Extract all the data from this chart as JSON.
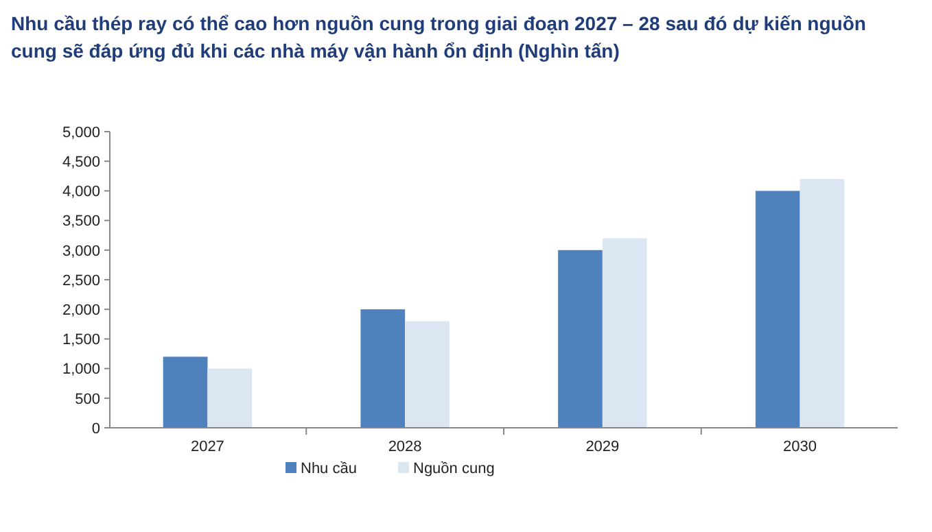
{
  "chart_data": {
    "type": "bar",
    "title": "Nhu cầu thép ray có thể cao hơn nguồn cung trong giai đoạn 2027 – 28 sau đó dự kiến nguồn cung sẽ đáp ứng đủ khi các nhà máy vận hành ổn định (Nghìn tấn)",
    "categories": [
      "2027",
      "2028",
      "2029",
      "2030"
    ],
    "series": [
      {
        "name": "Nhu cầu",
        "color": "#4f81bd",
        "values": [
          1200,
          2000,
          3000,
          4000
        ]
      },
      {
        "name": "Nguồn cung",
        "color": "#dce6f2",
        "values": [
          1000,
          1800,
          3200,
          4200
        ]
      }
    ],
    "ylim": [
      0,
      5000
    ],
    "yticks": [
      0,
      500,
      {
        "value": 1000,
        "label": "1,000"
      },
      {
        "value": 1500,
        "label": "1,500"
      },
      {
        "value": 2000,
        "label": "2,000"
      },
      {
        "value": 2500,
        "label": "2,500"
      },
      {
        "value": 3000,
        "label": "3,000"
      },
      {
        "value": 3500,
        "label": "3,500"
      },
      {
        "value": 4000,
        "label": "4,000"
      },
      {
        "value": 4500,
        "label": "4,500"
      },
      {
        "value": 5000,
        "label": "5,000"
      }
    ],
    "grid": false,
    "legend": "bottom"
  }
}
